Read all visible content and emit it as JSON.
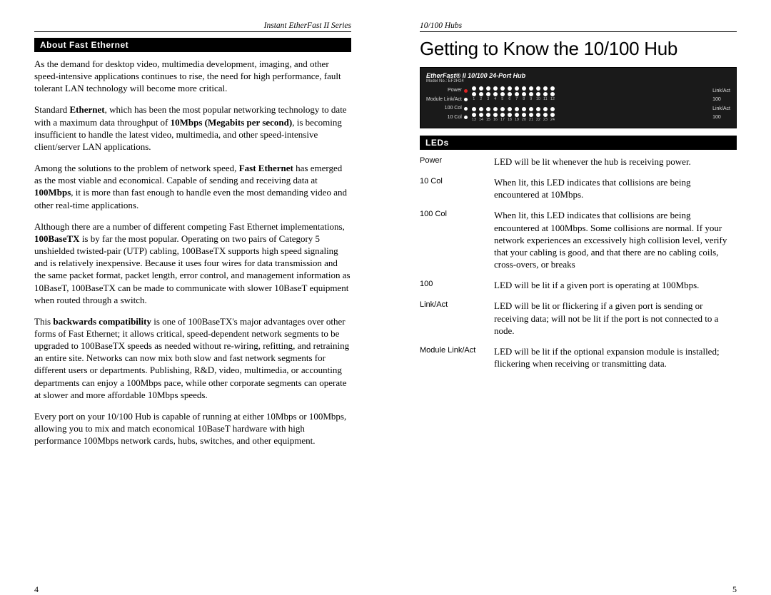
{
  "left": {
    "header": "Instant EtherFast II Series",
    "section_title": "About Fast Ethernet",
    "paragraphs": [
      "As the demand for desktop video, multimedia development, imaging, and other speed-intensive applications continues to rise, the need for high performance, fault tolerant LAN technology will become more critical.",
      "Standard <b>Ethernet</b>, which has been the most popular networking technology to date with a maximum data throughput of <b>10Mbps (Megabits per second)</b>, is becoming insufficient to handle the latest video, multimedia, and other speed-intensive client/server LAN applications.",
      "Among the solutions to the problem of network speed, <b>Fast Ethernet</b> has emerged as the most viable and economical. Capable of sending and receiving data at <b>100Mbps</b>, it is more than fast enough to handle even the most demanding video and other real-time applications.",
      "Although there are a number of different competing Fast Ethernet implementations, <b>100BaseTX</b> is by far the most popular. Operating on two pairs of Category 5 unshielded twisted-pair (UTP) cabling, 100BaseTX supports high speed signaling and is relatively inexpensive. Because it uses four wires for data transmission and the same packet format, packet length, error control, and management information as 10BaseT, 100BaseTX can be made to communicate with slower 10BaseT equipment when routed through a switch.",
      "This <b>backwards compatibility</b> is one of 100BaseTX's major advantages over other forms of Fast Ethernet; it allows critical, speed-dependent network segments to be upgraded to 100BaseTX speeds as needed without re-wiring, refitting, and retraining an entire site. Networks can now mix both slow and fast network segments for different users or departments. Publishing, R&D, video, multimedia, or accounting departments can enjoy a 100Mbps pace, while other corporate segments can operate at slower and more affordable 10Mbps speeds.",
      "Every port on your 10/100 Hub is capable of running at either 10Mbps or 100Mbps, allowing you to mix and match economical 10BaseT hardware with high performance 100Mbps network cards, hubs, switches, and other equipment."
    ],
    "page_number": "4"
  },
  "right": {
    "header": "10/100 Hubs",
    "chapter_title": "Getting to Know the 10/100 Hub",
    "hub": {
      "title": "EtherFast® II 10/100 24-Port Hub",
      "model": "Model No.: EF2H24",
      "left_labels": [
        "Power",
        "Module Link/Act",
        "100 Col",
        "10 Col"
      ],
      "right_labels": [
        "Link/Act",
        "100",
        "Link/Act",
        "100"
      ],
      "row1_numbers": [
        "1",
        "2",
        "3",
        "4",
        "5",
        "6",
        "7",
        "8",
        "9",
        "10",
        "11",
        "12"
      ],
      "row2_numbers": [
        "13",
        "14",
        "15",
        "16",
        "17",
        "18",
        "19",
        "20",
        "21",
        "22",
        "23",
        "24"
      ]
    },
    "leds_title": "LEDs",
    "leds": [
      {
        "term": "Power",
        "desc": "LED will be lit whenever the hub is receiving power."
      },
      {
        "term": "10 Col",
        "desc": "When lit, this LED indicates that collisions are being encountered at 10Mbps."
      },
      {
        "term": "100 Col",
        "desc": "When lit, this LED indicates that collisions are being encountered at 100Mbps. Some collisions are normal. If your network experiences an excessively high collision level, verify that your cabling is good, and that there are no cabling coils, cross-overs, or breaks"
      },
      {
        "term": "100",
        "desc": "LED will be lit if a given port is operating at 100Mbps."
      },
      {
        "term": "Link/Act",
        "desc": "LED will be lit or flickering if a given port is sending or receiving data; will not be lit if the port is not connected to a node."
      },
      {
        "term": "Module Link/Act",
        "desc": "LED will be lit if the optional expansion module is installed; flickering when receiving or transmitting data."
      }
    ],
    "page_number": "5"
  }
}
